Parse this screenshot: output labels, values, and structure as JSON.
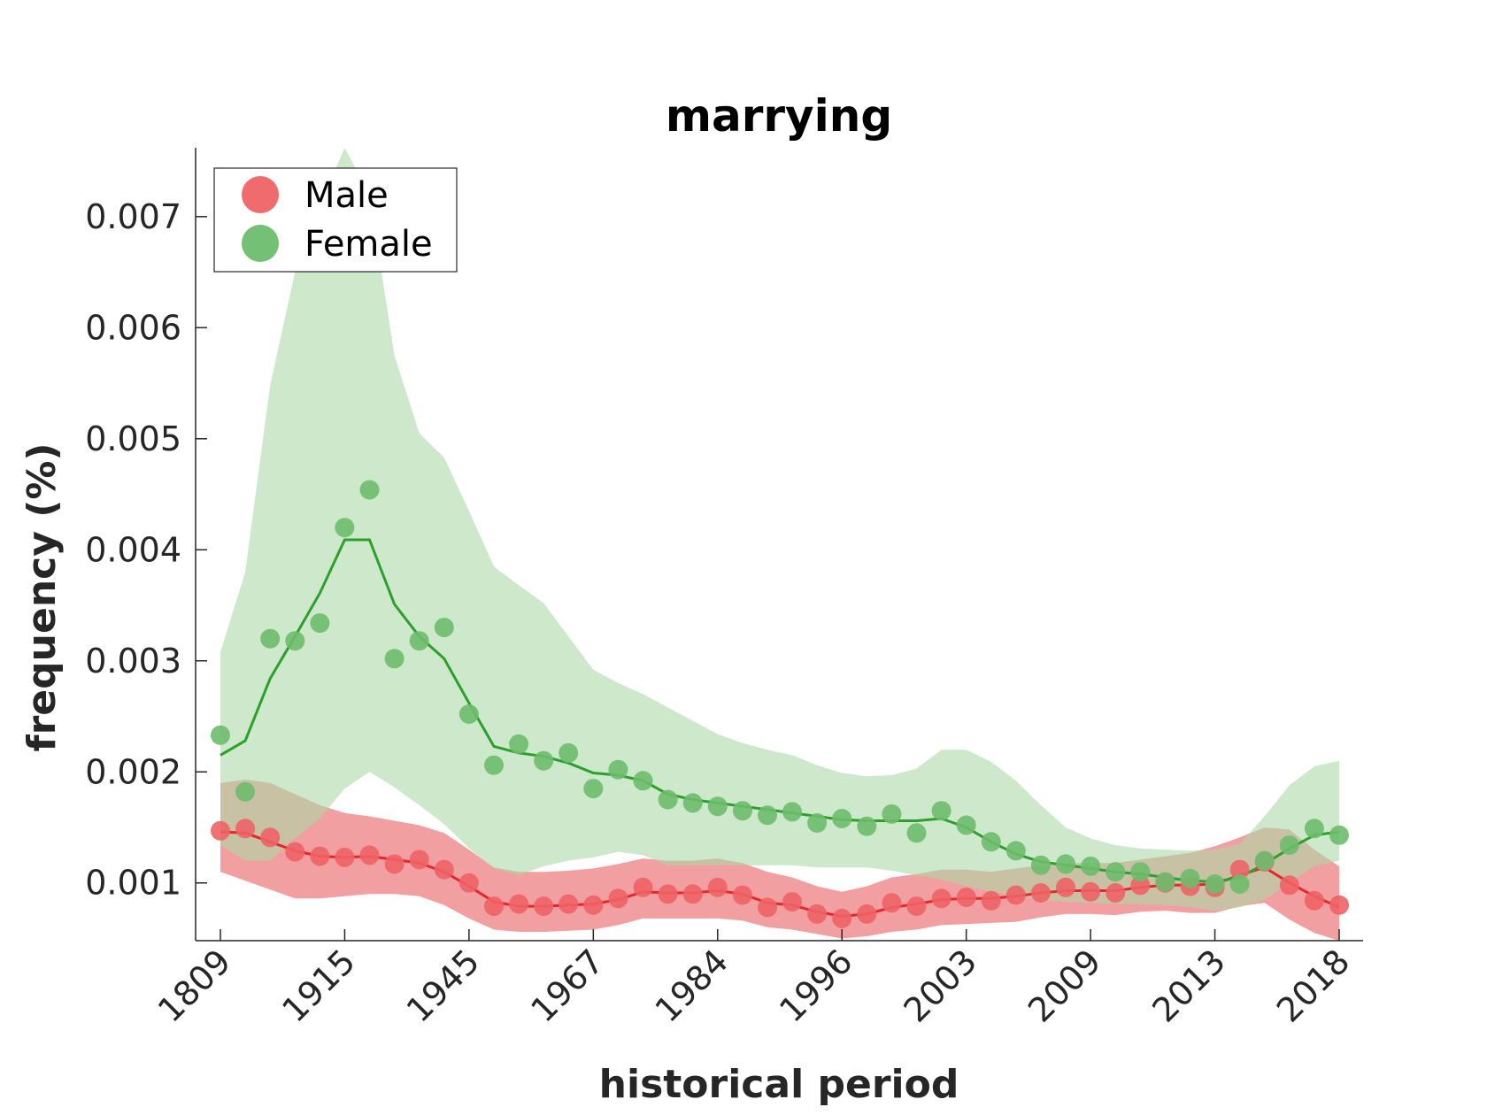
{
  "chart_data": {
    "type": "line",
    "title": "marrying",
    "xlabel": "historical period",
    "ylabel": "frequency (%)",
    "x_tick_labels": [
      "1809",
      "1915",
      "1945",
      "1967",
      "1984",
      "1996",
      "2003",
      "2009",
      "2013",
      "2018"
    ],
    "y_ticks": [
      0.001,
      0.002,
      0.003,
      0.004,
      0.005,
      0.006,
      0.007
    ],
    "y_tick_labels": [
      "0.001",
      "0.002",
      "0.003",
      "0.004",
      "0.005",
      "0.006",
      "0.007"
    ],
    "ylim": [
      0.00048,
      0.00762
    ],
    "grid": false,
    "legend_position": "top-left",
    "series": [
      {
        "name": "Male",
        "color": "#e8262a",
        "marker_color": "#ee6366",
        "band_color": "#f29fa1",
        "points": [
          0.00147,
          0.00149,
          0.00141,
          0.00128,
          0.00124,
          0.00123,
          0.00125,
          0.00117,
          0.00121,
          0.00112,
          0.001,
          0.00079,
          0.00081,
          0.00079,
          0.00081,
          0.0008,
          0.00086,
          0.00096,
          0.0009,
          0.0009,
          0.00096,
          0.00089,
          0.00078,
          0.00083,
          0.00072,
          0.00068,
          0.00072,
          0.00082,
          0.00079,
          0.00086,
          0.00087,
          0.00084,
          0.00089,
          0.00091,
          0.00096,
          0.00092,
          0.00091,
          0.00098,
          0.001,
          0.00097,
          0.00096,
          0.00112,
          0.00119,
          0.00098,
          0.00084,
          0.0008
        ],
        "line": [
          0.00146,
          0.00145,
          0.00137,
          0.00129,
          0.00124,
          0.00123,
          0.00124,
          0.00121,
          0.00118,
          0.0011,
          0.00097,
          0.00083,
          0.00079,
          0.00079,
          0.0008,
          0.00081,
          0.00085,
          0.00092,
          0.00091,
          0.00091,
          0.00093,
          0.0009,
          0.00082,
          0.0008,
          0.00074,
          0.0007,
          0.00072,
          0.00078,
          0.00081,
          0.00085,
          0.00086,
          0.00086,
          0.00088,
          0.00091,
          0.00093,
          0.00093,
          0.00093,
          0.00096,
          0.00098,
          0.00098,
          0.00099,
          0.00107,
          0.00114,
          0.001,
          0.00088,
          0.00078
        ],
        "upper": [
          0.0019,
          0.00193,
          0.0019,
          0.0018,
          0.0017,
          0.00163,
          0.0016,
          0.00156,
          0.00152,
          0.00145,
          0.0013,
          0.00114,
          0.0011,
          0.0011,
          0.00111,
          0.00113,
          0.00117,
          0.00122,
          0.0012,
          0.0012,
          0.00122,
          0.00118,
          0.0011,
          0.00105,
          0.00097,
          0.00092,
          0.00097,
          0.00105,
          0.00108,
          0.00112,
          0.00112,
          0.0011,
          0.00113,
          0.00116,
          0.00118,
          0.00118,
          0.00118,
          0.00121,
          0.00124,
          0.00127,
          0.00133,
          0.00141,
          0.0015,
          0.00148,
          0.0013,
          0.00115
        ],
        "lower": [
          0.0011,
          0.00102,
          0.00094,
          0.00086,
          0.00086,
          0.00088,
          0.0009,
          0.0009,
          0.00088,
          0.0008,
          0.00068,
          0.00058,
          0.00056,
          0.00056,
          0.00057,
          0.00058,
          0.00062,
          0.00068,
          0.00068,
          0.00068,
          0.00068,
          0.00066,
          0.0006,
          0.00058,
          0.00054,
          0.0005,
          0.00052,
          0.00056,
          0.00058,
          0.00062,
          0.00063,
          0.00064,
          0.00065,
          0.00069,
          0.00072,
          0.00072,
          0.00071,
          0.00074,
          0.00075,
          0.00073,
          0.00073,
          0.00079,
          0.00082,
          0.00067,
          0.00055,
          0.00048
        ]
      },
      {
        "name": "Female",
        "color": "#2ca02c",
        "marker_color": "#6dbd6d",
        "band_color": "#acd9a6",
        "points": [
          0.00233,
          0.00182,
          0.0032,
          0.00318,
          0.00334,
          0.0042,
          0.00454,
          0.00302,
          0.00318,
          0.0033,
          0.00252,
          0.00206,
          0.00225,
          0.0021,
          0.00217,
          0.00185,
          0.00202,
          0.00192,
          0.00175,
          0.00172,
          0.00169,
          0.00165,
          0.00161,
          0.00164,
          0.00154,
          0.00158,
          0.00151,
          0.00162,
          0.00145,
          0.00165,
          0.00152,
          0.00137,
          0.00129,
          0.00116,
          0.00117,
          0.00115,
          0.0011,
          0.0011,
          0.00101,
          0.00104,
          0.00099,
          0.00099,
          0.0012,
          0.00134,
          0.00149,
          0.00143
        ],
        "line": [
          0.00215,
          0.00228,
          0.00284,
          0.00322,
          0.00361,
          0.00409,
          0.00409,
          0.00351,
          0.00322,
          0.00302,
          0.00262,
          0.00223,
          0.00217,
          0.00214,
          0.00208,
          0.00199,
          0.00197,
          0.00192,
          0.0018,
          0.00175,
          0.00172,
          0.00169,
          0.00166,
          0.00163,
          0.0016,
          0.00157,
          0.00156,
          0.00156,
          0.00156,
          0.00158,
          0.0015,
          0.00137,
          0.00126,
          0.00119,
          0.00116,
          0.00113,
          0.0011,
          0.00108,
          0.00105,
          0.00102,
          0.00101,
          0.00105,
          0.00117,
          0.00131,
          0.00143,
          0.00146
        ],
        "upper": [
          0.00308,
          0.0038,
          0.00548,
          0.0065,
          0.0071,
          0.00762,
          0.0072,
          0.00575,
          0.00505,
          0.00483,
          0.00435,
          0.00385,
          0.00368,
          0.00352,
          0.00322,
          0.00292,
          0.0028,
          0.0027,
          0.00258,
          0.00246,
          0.00234,
          0.00226,
          0.0022,
          0.00215,
          0.00206,
          0.00199,
          0.00196,
          0.00197,
          0.00203,
          0.0022,
          0.0022,
          0.00209,
          0.00192,
          0.0017,
          0.0015,
          0.0014,
          0.00134,
          0.00131,
          0.0013,
          0.00129,
          0.0013,
          0.00135,
          0.0016,
          0.00188,
          0.00205,
          0.0021
        ],
        "lower": [
          0.00134,
          0.0012,
          0.0012,
          0.0014,
          0.00158,
          0.00185,
          0.002,
          0.00186,
          0.0017,
          0.00153,
          0.00131,
          0.00113,
          0.00107,
          0.00115,
          0.0012,
          0.00123,
          0.00128,
          0.00125,
          0.00116,
          0.00116,
          0.00116,
          0.00116,
          0.00116,
          0.00116,
          0.00114,
          0.00114,
          0.00114,
          0.00111,
          0.00107,
          0.00103,
          0.00097,
          0.00092,
          0.00088,
          0.00085,
          0.00083,
          0.00082,
          0.00081,
          0.00081,
          0.0008,
          0.00078,
          0.00075,
          0.00078,
          0.00085,
          0.001,
          0.00115,
          0.0012
        ]
      }
    ]
  }
}
